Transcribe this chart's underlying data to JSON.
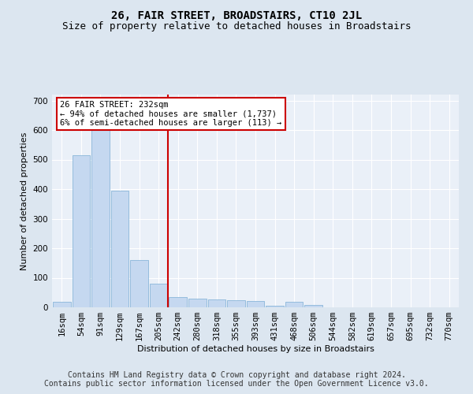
{
  "title": "26, FAIR STREET, BROADSTAIRS, CT10 2JL",
  "subtitle": "Size of property relative to detached houses in Broadstairs",
  "xlabel": "Distribution of detached houses by size in Broadstairs",
  "ylabel": "Number of detached properties",
  "categories": [
    "16sqm",
    "54sqm",
    "91sqm",
    "129sqm",
    "167sqm",
    "205sqm",
    "242sqm",
    "280sqm",
    "318sqm",
    "355sqm",
    "393sqm",
    "431sqm",
    "468sqm",
    "506sqm",
    "544sqm",
    "582sqm",
    "619sqm",
    "657sqm",
    "695sqm",
    "732sqm",
    "770sqm"
  ],
  "values": [
    20,
    515,
    600,
    395,
    160,
    80,
    35,
    30,
    28,
    25,
    22,
    5,
    18,
    8,
    0,
    0,
    0,
    0,
    0,
    0,
    0
  ],
  "bar_color": "#c5d8f0",
  "bar_edge_color": "#7aadd4",
  "vline_x_index": 6,
  "vline_color": "#cc0000",
  "annotation_text": "26 FAIR STREET: 232sqm\n← 94% of detached houses are smaller (1,737)\n6% of semi-detached houses are larger (113) →",
  "annotation_box_facecolor": "#ffffff",
  "annotation_box_edgecolor": "#cc0000",
  "footer_text": "Contains HM Land Registry data © Crown copyright and database right 2024.\nContains public sector information licensed under the Open Government Licence v3.0.",
  "ylim": [
    0,
    720
  ],
  "yticks": [
    0,
    100,
    200,
    300,
    400,
    500,
    600,
    700
  ],
  "bg_color": "#dce6f0",
  "plot_bg_color": "#eaf0f8",
  "grid_color": "#ffffff",
  "title_fontsize": 10,
  "subtitle_fontsize": 9,
  "axis_label_fontsize": 8,
  "tick_fontsize": 7.5,
  "footer_fontsize": 7,
  "annotation_fontsize": 7.5
}
